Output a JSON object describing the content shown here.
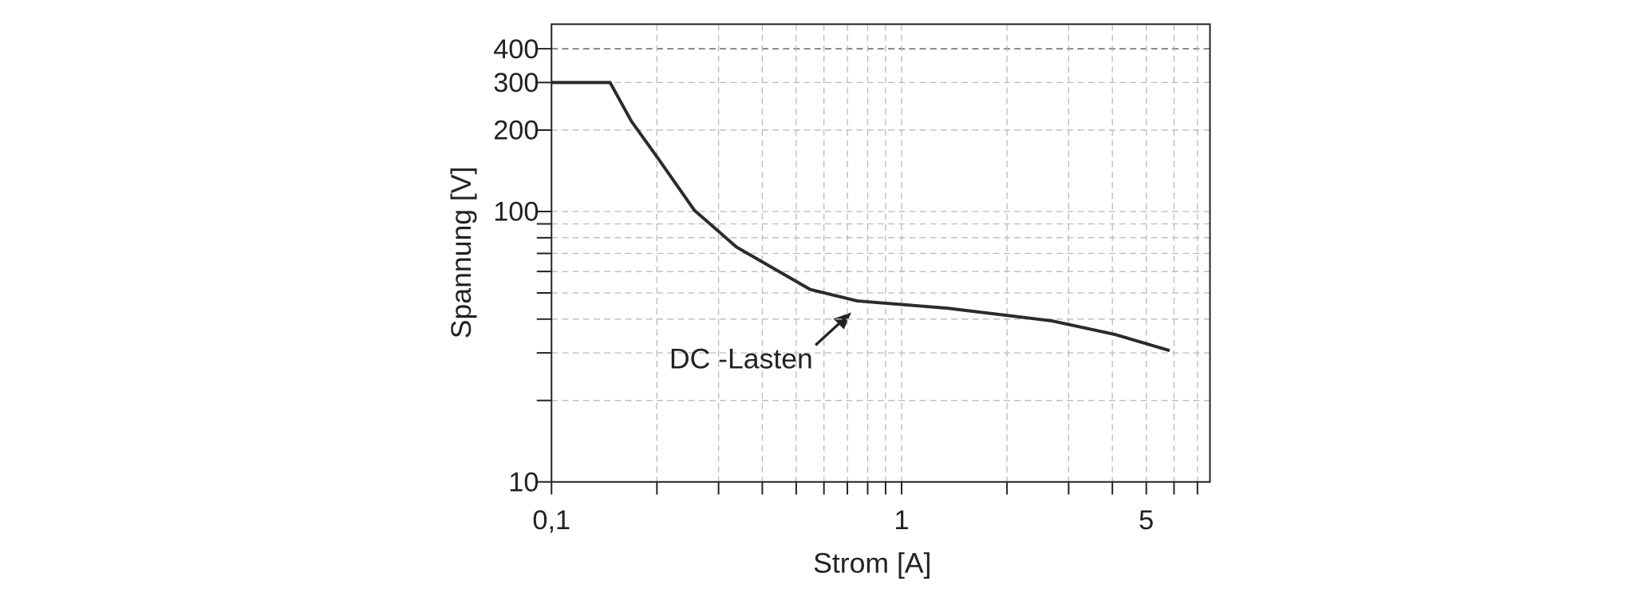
{
  "chart_data": {
    "type": "line",
    "log_x": true,
    "log_y": true,
    "grid": true,
    "x_label": "Strom [A]",
    "y_label": "Spannung [V]",
    "xlim": [
      0.1,
      7.6
    ],
    "ylim": [
      10,
      493
    ],
    "xticks": [
      {
        "value": 0.1,
        "label": "0,1"
      },
      1,
      5
    ],
    "xminor_ticks": [
      0.2,
      0.3,
      0.4,
      0.5,
      0.6,
      0.7,
      0.8,
      0.9,
      2,
      3,
      4,
      6,
      7
    ],
    "yticks": [
      10,
      100,
      200,
      300,
      400
    ],
    "yminor_ticks": [
      20,
      30,
      40,
      50,
      60,
      70,
      80,
      90
    ],
    "series": [
      {
        "name": "DC -Lasten",
        "color": "#2b2b2b",
        "x": [
          0.1,
          0.147,
          0.169,
          0.201,
          0.256,
          0.338,
          0.548,
          0.748,
          1.35,
          2.69,
          4.07,
          5.83
        ],
        "values": [
          300,
          300,
          216,
          158,
          101,
          73.8,
          51.5,
          46.7,
          43.9,
          39.4,
          35.1,
          30.6
        ]
      }
    ]
  }
}
